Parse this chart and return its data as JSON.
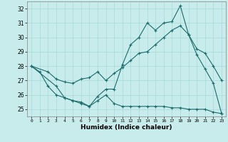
{
  "xlabel": "Humidex (Indice chaleur)",
  "bg_color": "#c8ecec",
  "grid_color": "#a8d8d8",
  "line_color": "#1a6b6b",
  "xlim": [
    -0.5,
    23.5
  ],
  "ylim": [
    24.5,
    32.5
  ],
  "xticks": [
    0,
    1,
    2,
    3,
    4,
    5,
    6,
    7,
    8,
    9,
    10,
    11,
    12,
    13,
    14,
    15,
    16,
    17,
    18,
    19,
    20,
    21,
    22,
    23
  ],
  "yticks": [
    25,
    26,
    27,
    28,
    29,
    30,
    31,
    32
  ],
  "line1_x": [
    0,
    1,
    2,
    3,
    4,
    5,
    6,
    7,
    8,
    9,
    10,
    11,
    12,
    13,
    14,
    15,
    16,
    17,
    18,
    19,
    20,
    21,
    22,
    23
  ],
  "line1_y": [
    28.0,
    27.6,
    26.6,
    26.0,
    25.8,
    25.6,
    25.4,
    25.2,
    25.9,
    26.4,
    26.4,
    28.1,
    29.5,
    30.0,
    31.0,
    30.5,
    31.0,
    31.1,
    32.2,
    30.2,
    28.8,
    27.8,
    26.8,
    24.7
  ],
  "line2_x": [
    0,
    2,
    3,
    4,
    5,
    6,
    7,
    8,
    9,
    10,
    11,
    12,
    13,
    14,
    15,
    16,
    17,
    18,
    19,
    20,
    21,
    22,
    23
  ],
  "line2_y": [
    28.0,
    27.6,
    27.1,
    26.9,
    26.8,
    27.1,
    27.2,
    27.6,
    27.0,
    27.5,
    27.9,
    28.4,
    28.9,
    29.0,
    29.5,
    30.0,
    30.5,
    30.8,
    30.2,
    29.2,
    28.9,
    28.0,
    27.0
  ],
  "line3_x": [
    0,
    3,
    4,
    5,
    6,
    7,
    8,
    9,
    10,
    11,
    12,
    13,
    14,
    15,
    16,
    17,
    18,
    19,
    20,
    21,
    22,
    23
  ],
  "line3_y": [
    28.0,
    26.6,
    25.8,
    25.6,
    25.5,
    25.2,
    25.6,
    26.0,
    25.4,
    25.2,
    25.2,
    25.2,
    25.2,
    25.2,
    25.2,
    25.1,
    25.1,
    25.0,
    25.0,
    25.0,
    24.8,
    24.7
  ]
}
